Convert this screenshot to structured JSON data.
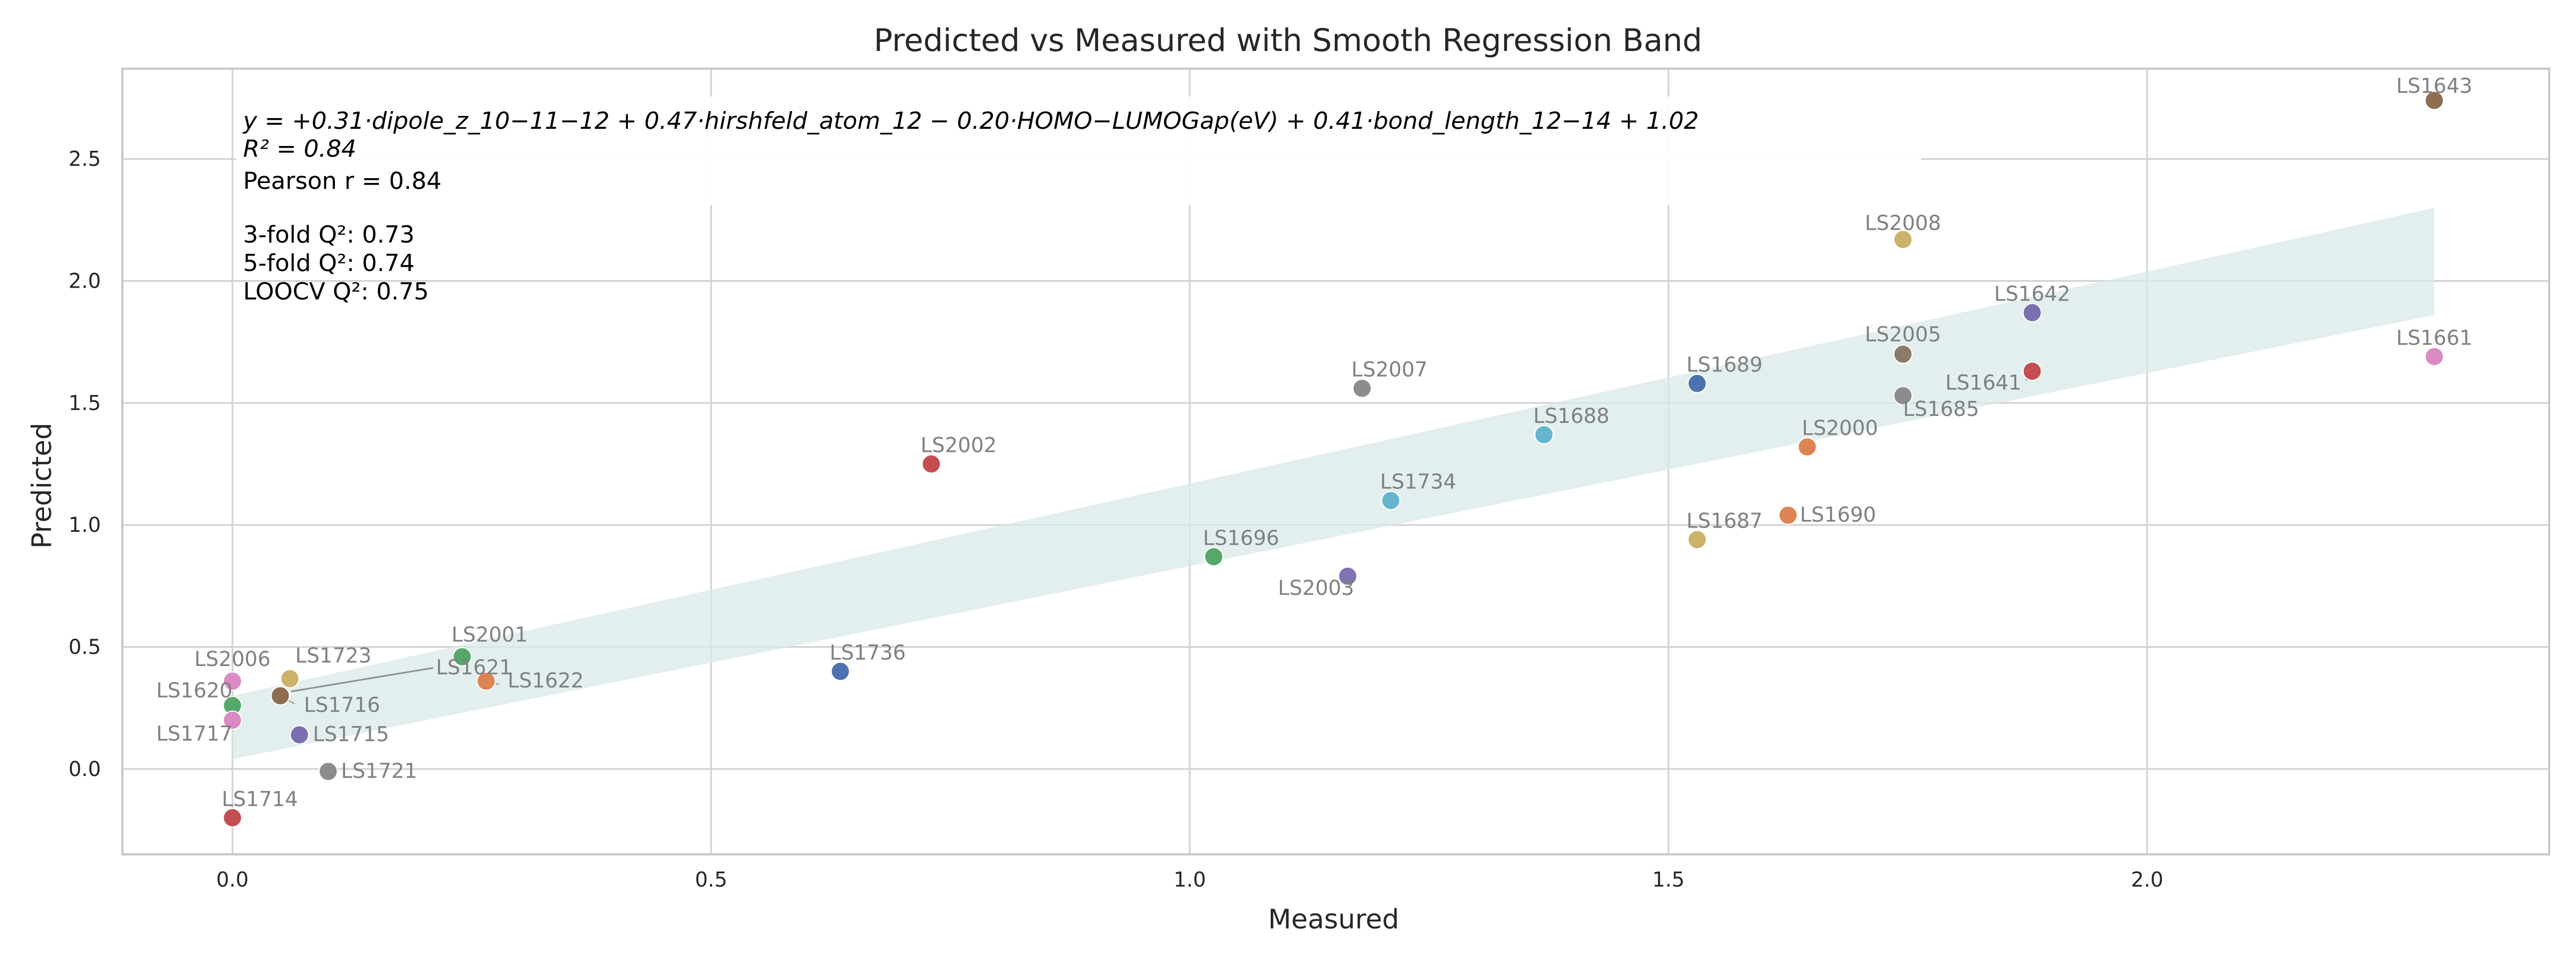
{
  "chart_data": {
    "type": "scatter",
    "title": "Predicted vs Measured with Smooth Regression Band",
    "xlabel": "Measured",
    "ylabel": "Predicted",
    "xlim": [
      -0.115,
      2.42
    ],
    "ylim": [
      -0.35,
      2.87
    ],
    "x_ticks": [
      0.0,
      0.5,
      1.0,
      1.5,
      2.0
    ],
    "x_tick_labels": [
      "0.0",
      "0.5",
      "1.0",
      "1.5",
      "2.0"
    ],
    "y_ticks": [
      0.0,
      0.5,
      1.0,
      1.5,
      2.0,
      2.5
    ],
    "y_tick_labels": [
      "0.0",
      "0.5",
      "1.0",
      "1.5",
      "2.0",
      "2.5"
    ],
    "grid": true,
    "band": {
      "x": [
        0.0,
        2.3
      ],
      "lower": [
        0.04,
        1.86
      ],
      "upper": [
        0.3,
        2.3
      ],
      "color": "#d9e9e9"
    },
    "annotation": {
      "equation": "y = +0.31·dipole_z_10−11−12 + 0.47·hirshfeld_atom_12 − 0.20·HOMO−LUMOGap(eV) + 0.41·bond_length_12−14 + 1.02",
      "r2": "R² = 0.84",
      "pearson": "Pearson r = 0.84",
      "q2_3fold": "3-fold Q²: 0.73",
      "q2_5fold": "5-fold Q²: 0.74",
      "loocv": "LOOCV Q²: 0.75"
    },
    "points": [
      {
        "label": "LS1643",
        "x": 2.3,
        "y": 2.74,
        "color": "#8c6d4f"
      },
      {
        "label": "LS2008",
        "x": 1.745,
        "y": 2.17,
        "color": "#ccb36b"
      },
      {
        "label": "LS1642",
        "x": 1.88,
        "y": 1.87,
        "color": "#7a6fb0"
      },
      {
        "label": "LS2005",
        "x": 1.745,
        "y": 1.7,
        "color": "#8c7a68"
      },
      {
        "label": "LS1661",
        "x": 2.3,
        "y": 1.69,
        "color": "#da8bc3"
      },
      {
        "label": "LS1641",
        "x": 1.88,
        "y": 1.63,
        "color": "#c44e52"
      },
      {
        "label": "LS1689",
        "x": 1.53,
        "y": 1.58,
        "color": "#4c72b0"
      },
      {
        "label": "LS2007",
        "x": 1.18,
        "y": 1.56,
        "color": "#8c8c8c"
      },
      {
        "label": "LS1685",
        "x": 1.745,
        "y": 1.53,
        "color": "#8c8c8c"
      },
      {
        "label": "LS1688",
        "x": 1.37,
        "y": 1.37,
        "color": "#64b5cd"
      },
      {
        "label": "LS2000",
        "x": 1.645,
        "y": 1.32,
        "color": "#dd8452"
      },
      {
        "label": "LS2002",
        "x": 0.73,
        "y": 1.25,
        "color": "#c44e52"
      },
      {
        "label": "LS1734",
        "x": 1.21,
        "y": 1.1,
        "color": "#64b5cd"
      },
      {
        "label": "LS1690",
        "x": 1.625,
        "y": 1.04,
        "color": "#dd8452"
      },
      {
        "label": "LS1687",
        "x": 1.53,
        "y": 0.94,
        "color": "#ccb36b"
      },
      {
        "label": "LS1696",
        "x": 1.025,
        "y": 0.87,
        "color": "#55a868"
      },
      {
        "label": "LS2003",
        "x": 1.165,
        "y": 0.79,
        "color": "#8172b3"
      },
      {
        "label": "LS2001",
        "x": 0.24,
        "y": 0.46,
        "color": "#55a868"
      },
      {
        "label": "LS1736",
        "x": 0.635,
        "y": 0.4,
        "color": "#4c72b0"
      },
      {
        "label": "LS2006",
        "x": 0.0,
        "y": 0.36,
        "color": "#da8bc3"
      },
      {
        "label": "LS1723",
        "x": 0.06,
        "y": 0.37,
        "color": "#ccb36b"
      },
      {
        "label": "LS1622",
        "x": 0.265,
        "y": 0.36,
        "color": "#dd8452"
      },
      {
        "label": "LS1716",
        "x": 0.05,
        "y": 0.3,
        "color": "#8c6d4f"
      },
      {
        "label": "LS1621",
        "x": 0.05,
        "y": 0.3,
        "color": "#8c6d4f"
      },
      {
        "label": "LS1620",
        "x": 0.0,
        "y": 0.26,
        "color": "#55a868"
      },
      {
        "label": "LS1717",
        "x": 0.0,
        "y": 0.2,
        "color": "#da8bc3"
      },
      {
        "label": "LS1715",
        "x": 0.07,
        "y": 0.14,
        "color": "#7a6fb0"
      },
      {
        "label": "LS1721",
        "x": 0.1,
        "y": -0.01,
        "color": "#8c8c8c"
      },
      {
        "label": "LS1714",
        "x": 0.0,
        "y": -0.2,
        "color": "#c44e52"
      }
    ]
  }
}
